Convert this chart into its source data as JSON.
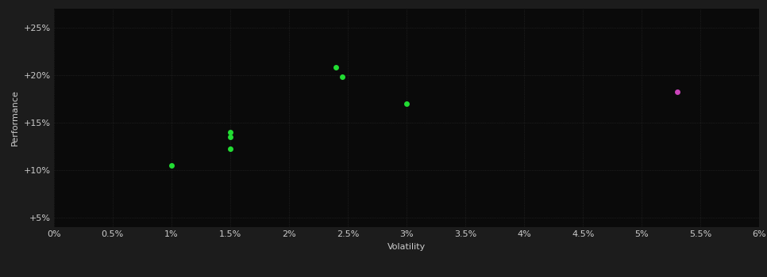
{
  "background_color": "#1c1c1c",
  "plot_bg_color": "#0a0a0a",
  "grid_color": "#2d2d2d",
  "text_color": "#cccccc",
  "green_points": [
    [
      0.01,
      0.105
    ],
    [
      0.015,
      0.14
    ],
    [
      0.015,
      0.135
    ],
    [
      0.015,
      0.122
    ],
    [
      0.024,
      0.208
    ],
    [
      0.0245,
      0.198
    ],
    [
      0.03,
      0.17
    ]
  ],
  "purple_points": [
    [
      0.053,
      0.182
    ]
  ],
  "green_color": "#22dd33",
  "purple_color": "#cc44bb",
  "xlim": [
    0.0,
    0.06
  ],
  "ylim": [
    0.04,
    0.27
  ],
  "x_ticks": [
    0.0,
    0.005,
    0.01,
    0.015,
    0.02,
    0.025,
    0.03,
    0.035,
    0.04,
    0.045,
    0.05,
    0.055,
    0.06
  ],
  "y_ticks": [
    0.05,
    0.1,
    0.15,
    0.2,
    0.25
  ],
  "xlabel": "Volatility",
  "ylabel": "Performance",
  "axis_fontsize": 8,
  "tick_fontsize": 8,
  "marker_size": 5,
  "grid_linewidth": 0.5,
  "grid_linestyle": "dotted"
}
